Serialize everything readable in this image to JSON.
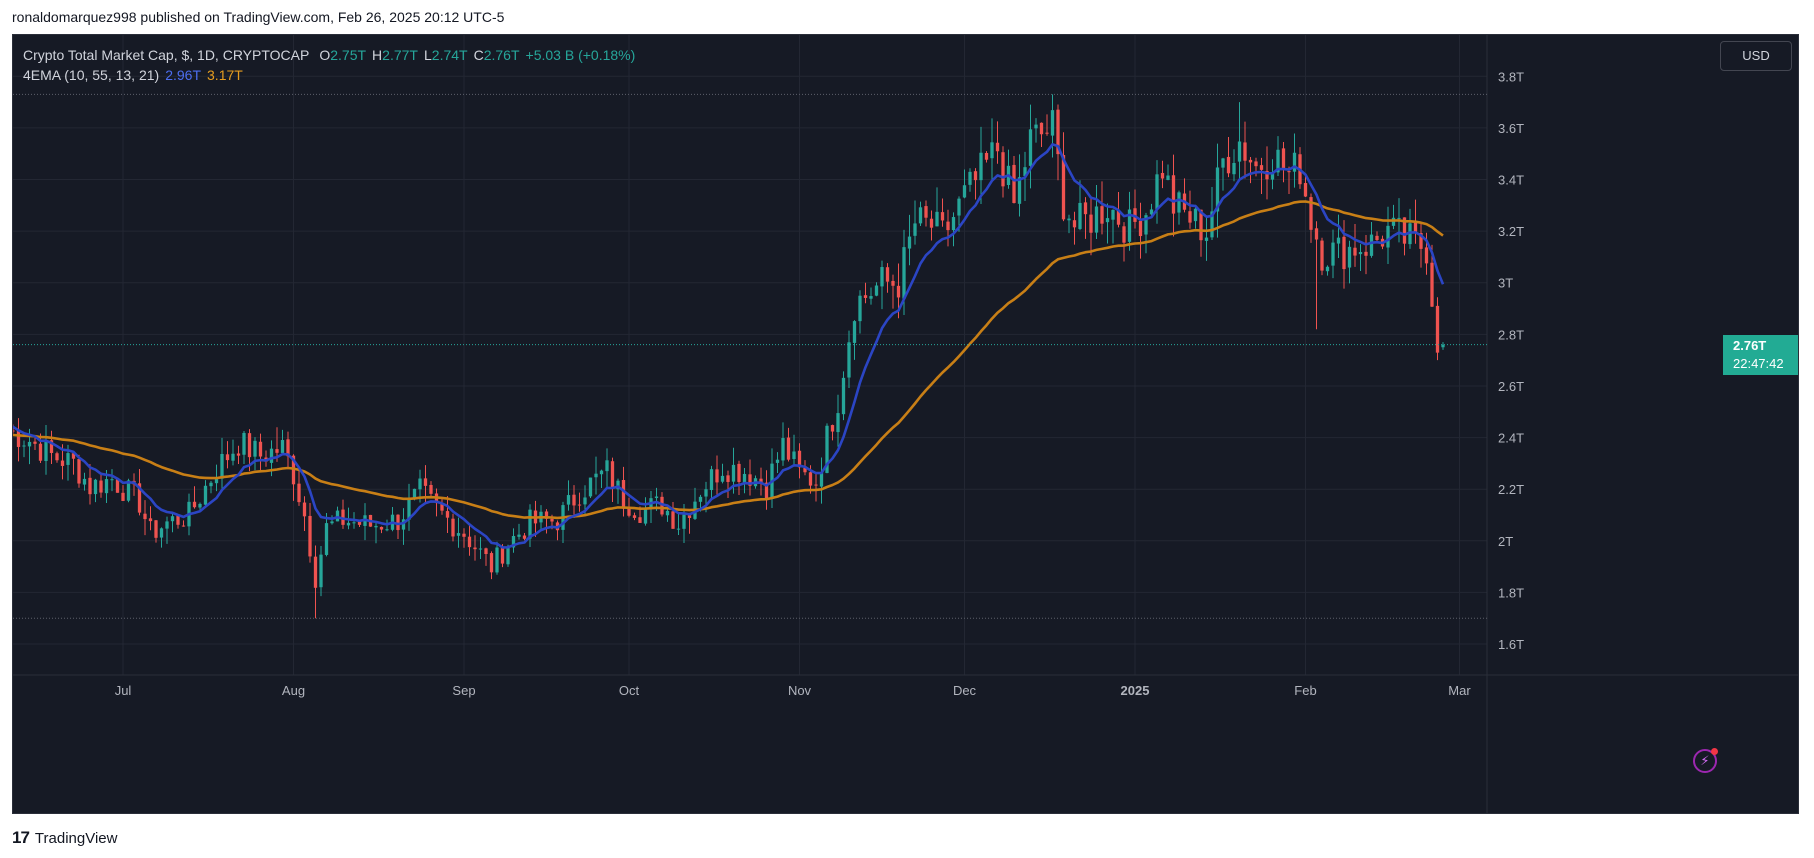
{
  "publish_line": "ronaldomarquez998 published on TradingView.com, Feb 26, 2025 20:12 UTC-5",
  "legend": {
    "symbol": "Crypto Total Market Cap, $, 1D, CRYPTOCAP",
    "o_label": "O",
    "o": "2.75T",
    "h_label": "H",
    "h": "2.77T",
    "l_label": "L",
    "l": "2.74T",
    "c_label": "C",
    "c": "2.76T",
    "change": "+5.03 B (+0.18%)",
    "indicator": "4EMA (10, 55, 13, 21)",
    "ema_fast": "2.96T",
    "ema_slow": "3.17T"
  },
  "currency_button": "USD",
  "price_tag": {
    "price": "2.76T",
    "countdown": "22:47:42"
  },
  "footer_brand": "TradingView",
  "colors": {
    "background": "#161a25",
    "grid": "#232733",
    "up": "#26a69a",
    "down": "#ef5350",
    "ema_fast": "#2b45c4",
    "ema_slow": "#c87f16",
    "axis_text": "#b2b5be",
    "price_tag": "#22ab94"
  },
  "chart_data": {
    "type": "candlestick",
    "y_axis": {
      "ticks": [
        "1.6T",
        "1.8T",
        "2T",
        "2.2T",
        "2.4T",
        "2.6T",
        "2.8T",
        "3T",
        "3.2T",
        "3.4T",
        "3.6T",
        "3.8T"
      ],
      "range": [
        1.48,
        3.96
      ],
      "unit": "T"
    },
    "x_axis": {
      "ticks": [
        "Jul",
        "Aug",
        "Sep",
        "Oct",
        "Nov",
        "Dec",
        "2025",
        "Feb",
        "Mar"
      ],
      "range": [
        "2024-06-11",
        "2025-03-06"
      ]
    },
    "dotted_levels": [
      3.73,
      1.7
    ],
    "last_price": 2.76,
    "close_anchors": [
      [
        "2024-06-10",
        2.43
      ],
      [
        "2024-06-14",
        2.39
      ],
      [
        "2024-06-18",
        2.33
      ],
      [
        "2024-06-22",
        2.3
      ],
      [
        "2024-06-25",
        2.21
      ],
      [
        "2024-06-29",
        2.24
      ],
      [
        "2024-07-04",
        2.15
      ],
      [
        "2024-07-06",
        2.03
      ],
      [
        "2024-07-09",
        2.07
      ],
      [
        "2024-07-13",
        2.1
      ],
      [
        "2024-07-18",
        2.28
      ],
      [
        "2024-07-22",
        2.38
      ],
      [
        "2024-07-26",
        2.33
      ],
      [
        "2024-07-30",
        2.36
      ],
      [
        "2024-08-01",
        2.26
      ],
      [
        "2024-08-03",
        2.1
      ],
      [
        "2024-08-05",
        1.86
      ],
      [
        "2024-08-07",
        2.05
      ],
      [
        "2024-08-10",
        2.08
      ],
      [
        "2024-08-15",
        2.06
      ],
      [
        "2024-08-20",
        2.08
      ],
      [
        "2024-08-24",
        2.19
      ],
      [
        "2024-08-27",
        2.12
      ],
      [
        "2024-09-01",
        2.03
      ],
      [
        "2024-09-06",
        1.9
      ],
      [
        "2024-09-09",
        1.99
      ],
      [
        "2024-09-13",
        2.07
      ],
      [
        "2024-09-18",
        2.08
      ],
      [
        "2024-09-22",
        2.19
      ],
      [
        "2024-09-27",
        2.27
      ],
      [
        "2024-09-30",
        2.16
      ],
      [
        "2024-10-03",
        2.12
      ],
      [
        "2024-10-07",
        2.14
      ],
      [
        "2024-10-10",
        2.07
      ],
      [
        "2024-10-14",
        2.2
      ],
      [
        "2024-10-18",
        2.29
      ],
      [
        "2024-10-22",
        2.27
      ],
      [
        "2024-10-26",
        2.22
      ],
      [
        "2024-10-29",
        2.37
      ],
      [
        "2024-11-01",
        2.26
      ],
      [
        "2024-11-04",
        2.23
      ],
      [
        "2024-11-06",
        2.4
      ],
      [
        "2024-11-08",
        2.55
      ],
      [
        "2024-11-11",
        2.92
      ],
      [
        "2024-11-13",
        2.95
      ],
      [
        "2024-11-16",
        3.0
      ],
      [
        "2024-11-19",
        3.0
      ],
      [
        "2024-11-22",
        3.23
      ],
      [
        "2024-11-25",
        3.22
      ],
      [
        "2024-11-27",
        3.18
      ],
      [
        "2024-12-01",
        3.33
      ],
      [
        "2024-12-04",
        3.42
      ],
      [
        "2024-12-07",
        3.52
      ],
      [
        "2024-12-10",
        3.3
      ],
      [
        "2024-12-13",
        3.55
      ],
      [
        "2024-12-17",
        3.6
      ],
      [
        "2024-12-19",
        3.32
      ],
      [
        "2024-12-21",
        3.22
      ],
      [
        "2024-12-24",
        3.25
      ],
      [
        "2024-12-27",
        3.3
      ],
      [
        "2024-12-31",
        3.21
      ],
      [
        "2025-01-03",
        3.28
      ],
      [
        "2025-01-06",
        3.45
      ],
      [
        "2025-01-08",
        3.3
      ],
      [
        "2025-01-11",
        3.25
      ],
      [
        "2025-01-14",
        3.2
      ],
      [
        "2025-01-17",
        3.47
      ],
      [
        "2025-01-20",
        3.55
      ],
      [
        "2025-01-23",
        3.45
      ],
      [
        "2025-01-26",
        3.5
      ],
      [
        "2025-01-29",
        3.42
      ],
      [
        "2025-01-31",
        3.45
      ],
      [
        "2025-02-02",
        3.25
      ],
      [
        "2025-02-04",
        3.12
      ],
      [
        "2025-02-07",
        3.12
      ],
      [
        "2025-02-10",
        3.14
      ],
      [
        "2025-02-13",
        3.15
      ],
      [
        "2025-02-16",
        3.2
      ],
      [
        "2025-02-19",
        3.17
      ],
      [
        "2025-02-21",
        3.15
      ],
      [
        "2025-02-23",
        3.14
      ],
      [
        "2025-02-24",
        2.95
      ],
      [
        "2025-02-25",
        2.78
      ],
      [
        "2025-02-26",
        2.76
      ]
    ],
    "series": [
      {
        "name": "4EMA (10, 55, 13, 21) 2.96T",
        "kind": "ema",
        "period": 10
      },
      {
        "name": "4EMA (10, 55, 13, 21) 3.17T",
        "kind": "ema",
        "period": 55
      }
    ],
    "grid": true
  }
}
